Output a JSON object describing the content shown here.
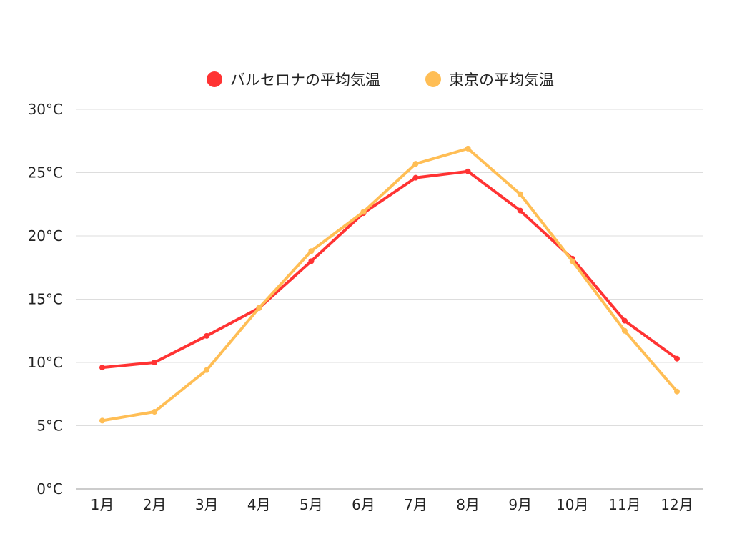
{
  "chart_data": {
    "type": "line",
    "title": "",
    "xlabel": "",
    "ylabel": "",
    "categories": [
      "1月",
      "2月",
      "3月",
      "4月",
      "5月",
      "6月",
      "7月",
      "8月",
      "9月",
      "10月",
      "11月",
      "12月"
    ],
    "ylim": [
      0,
      30
    ],
    "yticks": [
      0,
      5,
      10,
      15,
      20,
      25,
      30
    ],
    "ytick_labels": [
      "0°C",
      "5°C",
      "10°C",
      "15°C",
      "20°C",
      "25°C",
      "30°C"
    ],
    "grid": true,
    "legend_position": "top-center",
    "series": [
      {
        "name": "バルセロナの平均気温",
        "color": "#ff3333",
        "values": [
          9.6,
          10.0,
          12.1,
          14.3,
          18.0,
          21.8,
          24.6,
          25.1,
          22.0,
          18.2,
          13.3,
          10.3
        ]
      },
      {
        "name": "東京の平均気温",
        "color": "#ffbe55",
        "values": [
          5.4,
          6.1,
          9.4,
          14.3,
          18.8,
          21.9,
          25.7,
          26.9,
          23.3,
          18.0,
          12.5,
          7.7
        ]
      }
    ]
  }
}
